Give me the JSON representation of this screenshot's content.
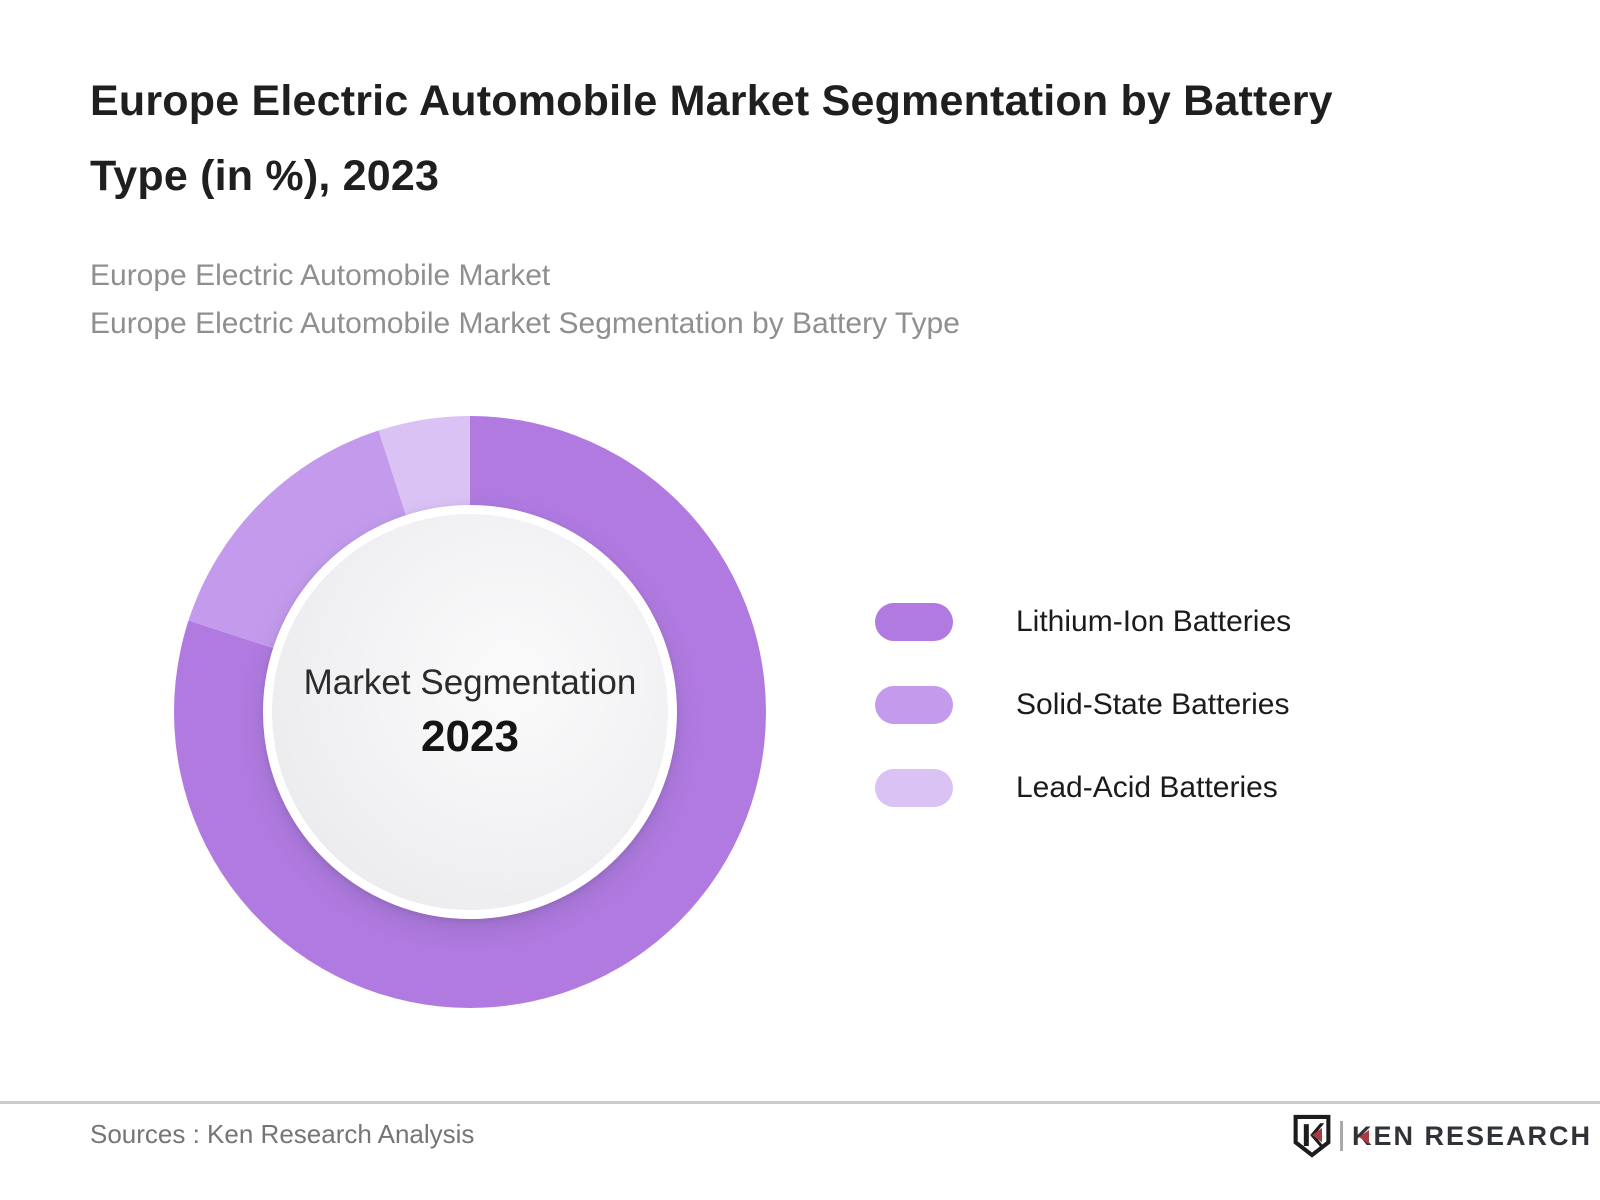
{
  "page": {
    "title": "Europe Electric Automobile Market Segmentation by Battery Type (in %), 2023",
    "subtitle_line1": "Europe Electric Automobile Market",
    "subtitle_line2": "Europe Electric Automobile Market Segmentation by Battery Type"
  },
  "chart_data": {
    "type": "pie",
    "donut": true,
    "title": "Europe Electric Automobile Market Segmentation by Battery Type (in %), 2023",
    "center_label": "Market Segmentation",
    "center_year": "2023",
    "unit": "%",
    "start_angle_deg": 0,
    "direction": "clockwise",
    "legend_position": "right",
    "segments": [
      {
        "label": "Lithium-Ion Batteries",
        "value": 80,
        "color": "#b07ae0"
      },
      {
        "label": "Solid-State Batteries",
        "value": 15,
        "color": "#c49bec"
      },
      {
        "label": "Lead-Acid Batteries",
        "value": 5,
        "color": "#dbc2f4"
      }
    ]
  },
  "footer": {
    "sources": "Sources : Ken Research Analysis",
    "logo_text": "KEN RESEARCH"
  },
  "colors": {
    "title_text": "#1f1f1f",
    "subtitle_text": "#8f8f8f",
    "divider": "#cbcbcb",
    "logo_dark": "#2f3338",
    "logo_red": "#a73b41",
    "hole_gradient_edge": "#e7e7ea"
  }
}
